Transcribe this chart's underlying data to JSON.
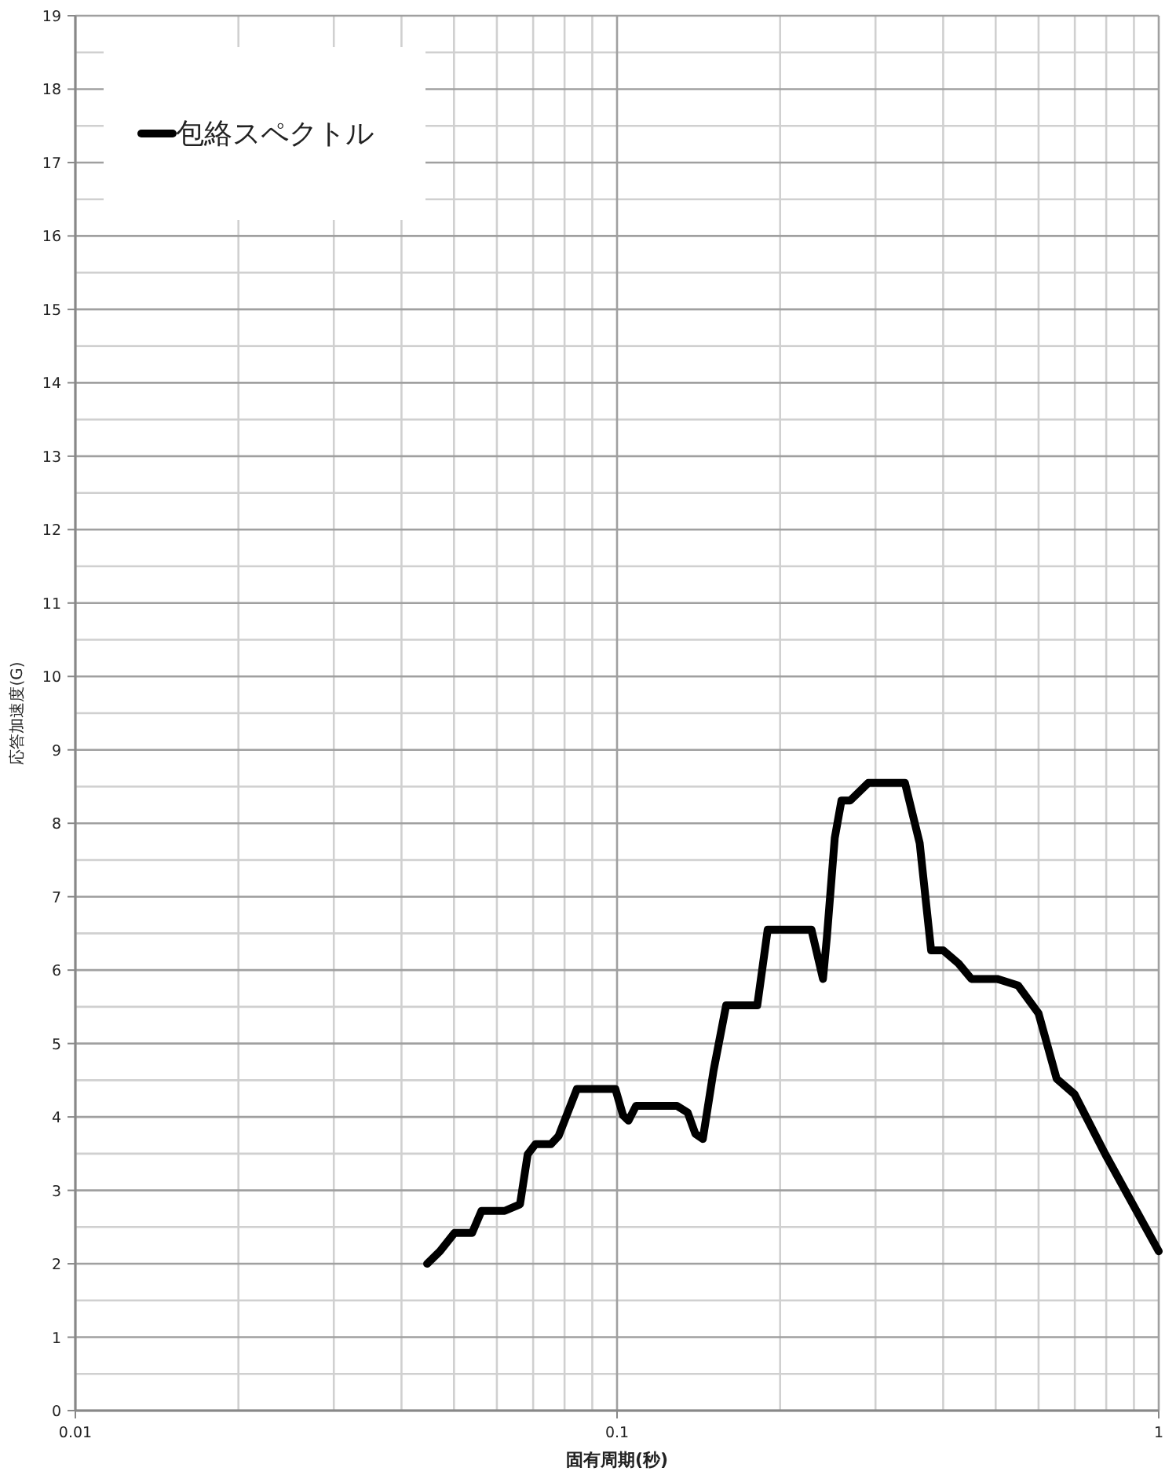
{
  "chart_data": {
    "type": "line",
    "xlabel": "固有周期(秒)",
    "ylabel": "応答加速度(G)",
    "log": "x",
    "xlim": [
      0.01,
      1
    ],
    "xticks": [
      0.01,
      0.1,
      1
    ],
    "ylim": [
      0,
      19
    ],
    "yticks": [
      0,
      1,
      2,
      3,
      4,
      5,
      6,
      7,
      8,
      9,
      10,
      11,
      12,
      13,
      14,
      15,
      16,
      17,
      18,
      19
    ],
    "grid": true,
    "legend": "top left",
    "marker": "none",
    "line_style": "solid",
    "series": [
      {
        "name": "包絡スペクトル",
        "color": "#000000",
        "x": [
          0.0446,
          0.0471,
          0.0501,
          0.054,
          0.0562,
          0.062,
          0.0662,
          0.0684,
          0.0707,
          0.0755,
          0.078,
          0.0843,
          0.0993,
          0.1026,
          0.105,
          0.1084,
          0.129,
          0.135,
          0.1395,
          0.144,
          0.1507,
          0.159,
          0.1815,
          0.1897,
          0.2285,
          0.24,
          0.244,
          0.2523,
          0.2596,
          0.2694,
          0.2909,
          0.34,
          0.362,
          0.38,
          0.4,
          0.427,
          0.451,
          0.503,
          0.55,
          0.6,
          0.648,
          0.699,
          0.797,
          1.0
        ],
        "values": [
          2.0,
          2.17,
          2.42,
          2.42,
          2.72,
          2.72,
          2.81,
          3.49,
          3.63,
          3.63,
          3.74,
          4.38,
          4.38,
          4.02,
          3.95,
          4.15,
          4.15,
          4.06,
          3.77,
          3.7,
          4.63,
          5.52,
          5.52,
          6.55,
          6.55,
          5.88,
          6.45,
          7.8,
          8.31,
          8.31,
          8.55,
          8.55,
          7.73,
          6.27,
          6.27,
          6.09,
          5.88,
          5.88,
          5.79,
          5.41,
          4.52,
          4.31,
          3.49,
          2.17
        ]
      }
    ]
  }
}
